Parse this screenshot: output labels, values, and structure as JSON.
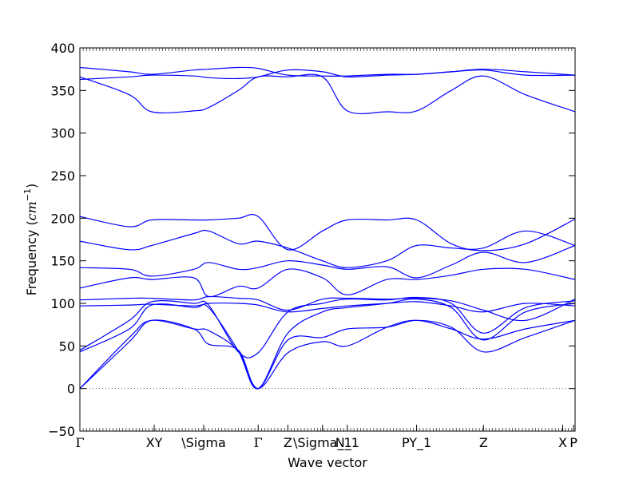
{
  "chart_data": {
    "type": "line",
    "title": "",
    "xlabel": "Wave vector",
    "ylabel": "Frequency (cm⁻¹)",
    "ylabel_parts": {
      "prefix": "Frequency (",
      "unit": "cm",
      "exponent": "−1",
      "suffix": ")"
    },
    "ylim": [
      -50,
      400
    ],
    "xlim": [
      0,
      10
    ],
    "yticks": [
      -50,
      0,
      50,
      100,
      150,
      200,
      250,
      300,
      350,
      400
    ],
    "grid": false,
    "legend": "none",
    "line_color": "#0000ff",
    "zero_line_color": "#555555",
    "high_symmetry_points": [
      {
        "label": "Γ",
        "x": 0.0
      },
      {
        "label": "XY",
        "x": 1.5
      },
      {
        "label": "\\Sigma",
        "x": 2.5
      },
      {
        "label": "Γ",
        "x": 3.6
      },
      {
        "label": "Z",
        "x": 4.2
      },
      {
        "label": "\\Sigma_1",
        "x": 4.9
      },
      {
        "label": "N_1",
        "x": 5.4
      },
      {
        "label": "PY_1",
        "x": 6.8
      },
      {
        "label": "Z",
        "x": 8.15
      },
      {
        "label": "X",
        "x": 9.75
      },
      {
        "label": "P",
        "x": 9.97
      }
    ],
    "series": [
      {
        "x": [
          0,
          1.0,
          1.45,
          2.3,
          2.6,
          3.2,
          3.6,
          4.2,
          4.9,
          5.4,
          6.2,
          6.8,
          7.5,
          8.15,
          9.0,
          10.0
        ],
        "values": [
          0,
          55,
          80,
          70,
          52,
          45,
          0,
          57,
          60,
          70,
          72,
          80,
          72,
          43,
          60,
          80
        ]
      },
      {
        "x": [
          0,
          1.0,
          1.45,
          2.3,
          2.6,
          3.2,
          3.6,
          4.2,
          4.9,
          5.4,
          6.2,
          6.8,
          7.5,
          8.15,
          9.0,
          10.0
        ],
        "values": [
          0,
          60,
          80,
          70,
          68,
          44,
          0,
          42,
          55,
          50,
          72,
          80,
          70,
          58,
          70,
          80
        ]
      },
      {
        "x": [
          0,
          1.0,
          1.45,
          2.3,
          2.6,
          3.2,
          3.6,
          4.2,
          4.9,
          5.4,
          6.2,
          6.8,
          7.5,
          8.15,
          9.0,
          10.0
        ],
        "values": [
          43,
          70,
          98,
          95,
          95,
          44,
          0,
          65,
          90,
          95,
          100,
          105,
          95,
          57,
          90,
          100
        ]
      },
      {
        "x": [
          0,
          1.0,
          1.45,
          2.3,
          2.6,
          3.2,
          3.6,
          4.2,
          4.9,
          5.4,
          6.2,
          6.8,
          7.5,
          8.15,
          9.0,
          10.0
        ],
        "values": [
          45,
          80,
          102,
          100,
          98,
          43,
          42,
          90,
          100,
          105,
          104,
          107,
          100,
          65,
          95,
          103
        ]
      },
      {
        "x": [
          0,
          1.0,
          1.45,
          2.3,
          2.6,
          3.2,
          3.6,
          4.2,
          4.9,
          5.4,
          6.2,
          6.8,
          7.5,
          8.15,
          9.0,
          10.0
        ],
        "values": [
          97,
          98,
          99,
          97,
          100,
          100,
          98,
          90,
          94,
          97,
          100,
          102,
          97,
          90,
          100,
          97
        ]
      },
      {
        "x": [
          0,
          1.0,
          1.45,
          2.3,
          2.6,
          3.2,
          3.6,
          4.2,
          4.9,
          5.4,
          6.2,
          6.8,
          7.5,
          8.15,
          9.0,
          10.0
        ],
        "values": [
          104,
          106,
          106,
          104,
          108,
          106,
          104,
          92,
          105,
          106,
          105,
          106,
          103,
          92,
          80,
          105
        ]
      },
      {
        "x": [
          0,
          1.0,
          1.45,
          2.3,
          2.6,
          3.2,
          3.6,
          4.2,
          4.9,
          5.4,
          6.2,
          6.8,
          7.5,
          8.15,
          9.0,
          10.0
        ],
        "values": [
          118,
          130,
          128,
          130,
          108,
          120,
          118,
          140,
          130,
          110,
          128,
          128,
          133,
          140,
          140,
          128
        ]
      },
      {
        "x": [
          0,
          1.0,
          1.45,
          2.3,
          2.6,
          3.2,
          3.6,
          4.2,
          4.9,
          5.4,
          6.2,
          6.8,
          7.5,
          8.15,
          9.0,
          10.0
        ],
        "values": [
          142,
          140,
          132,
          140,
          148,
          140,
          142,
          150,
          145,
          140,
          143,
          130,
          145,
          160,
          148,
          168
        ]
      },
      {
        "x": [
          0,
          1.0,
          1.45,
          2.3,
          2.6,
          3.2,
          3.6,
          4.2,
          4.9,
          5.4,
          6.2,
          6.8,
          7.5,
          8.15,
          9.0,
          10.0
        ],
        "values": [
          173,
          163,
          168,
          182,
          185,
          170,
          173,
          165,
          150,
          142,
          150,
          168,
          165,
          165,
          185,
          168
        ]
      },
      {
        "x": [
          0,
          1.0,
          1.45,
          2.3,
          2.6,
          3.2,
          3.6,
          4.2,
          4.9,
          5.4,
          6.2,
          6.8,
          7.5,
          8.15,
          9.0,
          10.0
        ],
        "values": [
          202,
          190,
          198,
          198,
          198,
          200,
          202,
          163,
          185,
          198,
          198,
          198,
          170,
          162,
          170,
          199
        ]
      },
      {
        "x": [
          0,
          1.0,
          1.45,
          2.3,
          2.6,
          3.2,
          3.6,
          4.2,
          4.9,
          5.4,
          6.2,
          6.8,
          7.5,
          8.15,
          9.0,
          10.0
        ],
        "values": [
          366,
          345,
          325,
          326,
          330,
          350,
          366,
          366,
          366,
          326,
          325,
          326,
          350,
          367,
          345,
          325
        ]
      },
      {
        "x": [
          0,
          1.0,
          1.45,
          2.3,
          2.6,
          3.2,
          3.6,
          4.2,
          4.9,
          5.4,
          6.2,
          6.8,
          7.5,
          8.15,
          9.0,
          10.0
        ],
        "values": [
          363,
          366,
          368,
          367,
          365,
          364,
          366,
          374,
          372,
          366,
          368,
          369,
          372,
          374,
          368,
          368
        ]
      },
      {
        "x": [
          0,
          1.0,
          1.45,
          2.3,
          2.6,
          3.2,
          3.6,
          4.2,
          4.9,
          5.4,
          6.2,
          6.8,
          7.5,
          8.15,
          9.0,
          10.0
        ],
        "values": [
          377,
          372,
          369,
          374,
          375,
          377,
          376,
          368,
          367,
          367,
          369,
          369,
          372,
          375,
          372,
          368
        ]
      }
    ]
  }
}
